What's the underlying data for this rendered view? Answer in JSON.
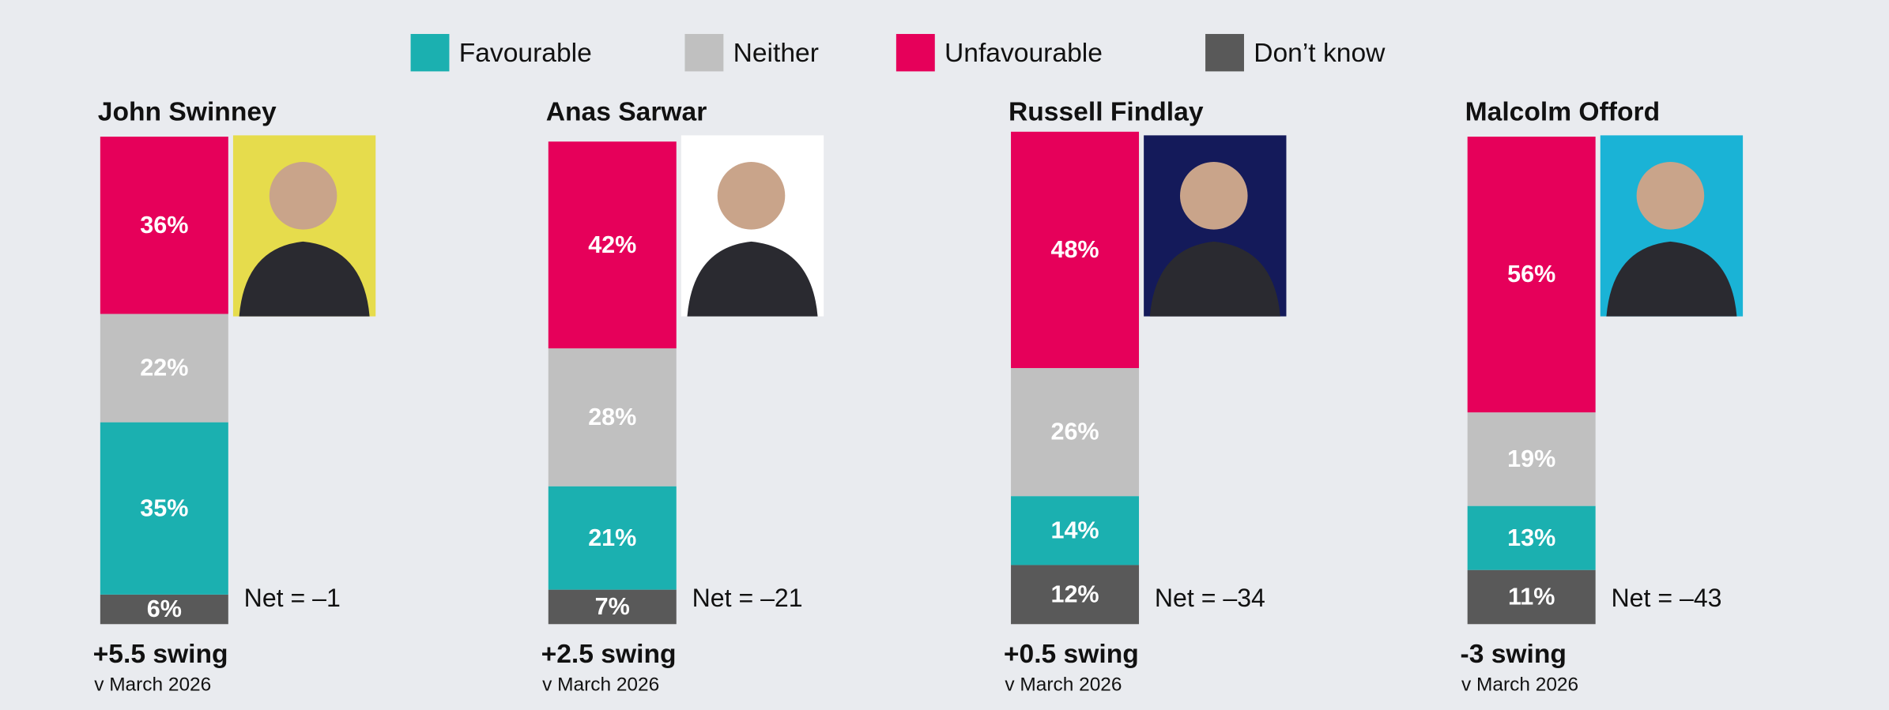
{
  "chart_data": {
    "type": "stacked_bar",
    "categories": [
      "John Swinney",
      "Anas Sarwar",
      "Russell Findlay",
      "Malcolm Offord"
    ],
    "series": [
      {
        "name": "Don’t know",
        "color": "#595959",
        "values": [
          6,
          7,
          12,
          11
        ],
        "value_labels": [
          "6%",
          "7%",
          "12%",
          "11%"
        ]
      },
      {
        "name": "Favourable",
        "color": "#1bb0b0",
        "values": [
          35,
          21,
          14,
          13
        ],
        "value_labels": [
          "35%",
          "21%",
          "14%",
          "13%"
        ]
      },
      {
        "name": "Neither",
        "color": "#c0c0c0",
        "values": [
          22,
          28,
          26,
          19
        ],
        "value_labels": [
          "22%",
          "28%",
          "26%",
          "19%"
        ]
      },
      {
        "name": "Unfavourable",
        "color": "#e6005a",
        "values": [
          36,
          42,
          48,
          56
        ],
        "value_labels": [
          "36%",
          "42%",
          "48%",
          "56%"
        ]
      }
    ],
    "legend_order": [
      1,
      2,
      3,
      0
    ],
    "ylim": [
      0,
      100
    ],
    "net_labels": [
      "Net = –1",
      "Net = –21",
      "Net = –34",
      "Net = –43"
    ],
    "swing_labels": [
      "+5.5 swing",
      "+2.5 swing",
      "+0.5 swing",
      "-3 swing"
    ],
    "swing_note": "v March 2026"
  }
}
